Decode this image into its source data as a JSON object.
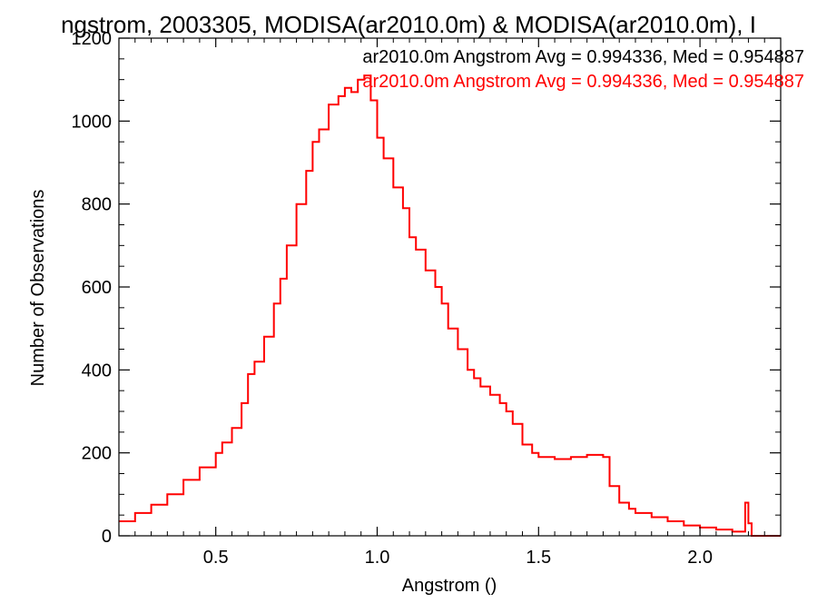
{
  "chart_data": {
    "type": "line",
    "title": "ngstrom, 2003305, MODISA(ar2010.0m) & MODISA(ar2010.0m), I",
    "xlabel": "Angstrom ()",
    "ylabel": "Number of Observations",
    "xlim": [
      0.2,
      2.25
    ],
    "ylim": [
      0,
      1200
    ],
    "xticks": [
      0.5,
      1.0,
      1.5,
      2.0
    ],
    "xtick_labels": [
      "0.5",
      "1.0",
      "1.5",
      "2.0"
    ],
    "yticks": [
      0,
      200,
      400,
      600,
      800,
      1000,
      1200
    ],
    "ytick_labels": [
      "0",
      "200",
      "400",
      "600",
      "800",
      "1000",
      "1200"
    ],
    "grid": false,
    "legend_position": "top-right",
    "annotations": [
      {
        "text": "ar2010.0m Angstrom Avg = 0.994336, Med = 0.954887",
        "color": "#000000"
      },
      {
        "text": "ar2010.0m Angstrom Avg = 0.994336, Med = 0.954887",
        "color": "#ff0000"
      }
    ],
    "series": [
      {
        "color": "#ff0000",
        "style": "step",
        "x": [
          0.2,
          0.25,
          0.3,
          0.35,
          0.4,
          0.45,
          0.5,
          0.52,
          0.55,
          0.58,
          0.6,
          0.62,
          0.65,
          0.68,
          0.7,
          0.72,
          0.75,
          0.78,
          0.8,
          0.82,
          0.85,
          0.88,
          0.9,
          0.92,
          0.94,
          0.96,
          0.98,
          1.0,
          1.02,
          1.05,
          1.08,
          1.1,
          1.12,
          1.15,
          1.18,
          1.2,
          1.22,
          1.25,
          1.28,
          1.3,
          1.32,
          1.35,
          1.38,
          1.4,
          1.42,
          1.45,
          1.48,
          1.5,
          1.55,
          1.6,
          1.65,
          1.7,
          1.72,
          1.75,
          1.78,
          1.8,
          1.85,
          1.9,
          1.95,
          2.0,
          2.05,
          2.1,
          2.13,
          2.14,
          2.15,
          2.16,
          2.2,
          2.25
        ],
        "y": [
          35,
          55,
          75,
          100,
          135,
          165,
          200,
          225,
          260,
          320,
          390,
          420,
          480,
          560,
          620,
          700,
          800,
          880,
          950,
          980,
          1040,
          1060,
          1080,
          1070,
          1100,
          1110,
          1050,
          960,
          910,
          840,
          790,
          720,
          690,
          640,
          600,
          560,
          500,
          450,
          400,
          380,
          360,
          340,
          320,
          300,
          270,
          220,
          200,
          190,
          185,
          190,
          195,
          190,
          120,
          80,
          65,
          55,
          45,
          35,
          25,
          20,
          15,
          10,
          10,
          80,
          30,
          0,
          0,
          0
        ]
      }
    ]
  }
}
